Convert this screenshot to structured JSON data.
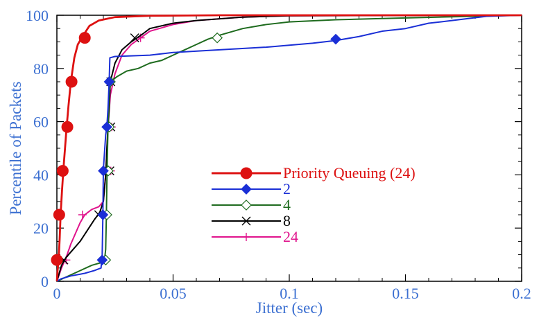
{
  "chart_data": {
    "type": "line",
    "title": "",
    "xlabel": "Jitter (sec)",
    "ylabel": "Percentile of Packets",
    "xlim": [
      0,
      0.2
    ],
    "ylim": [
      0,
      100
    ],
    "x_ticks": [
      "0",
      "0.05",
      "0.1",
      "0.15",
      "0.2"
    ],
    "y_ticks": [
      "0",
      "20",
      "40",
      "60",
      "80",
      "100"
    ],
    "grid": false,
    "legend_position": "center-right",
    "colors": {
      "tick_labels": "#3b6fd1",
      "axis_frame": "#000000"
    },
    "series": [
      {
        "name": "Priority Queuing (24)",
        "color": "#dd1111",
        "marker": "filled-circle",
        "points": [
          [
            0.0,
            0
          ],
          [
            0.0003,
            4
          ],
          [
            0.0008,
            9
          ],
          [
            0.0012,
            16
          ],
          [
            0.0016,
            25
          ],
          [
            0.0022,
            34
          ],
          [
            0.0028,
            42
          ],
          [
            0.0035,
            50
          ],
          [
            0.0042,
            58
          ],
          [
            0.005,
            66
          ],
          [
            0.006,
            75
          ],
          [
            0.0075,
            84
          ],
          [
            0.009,
            89
          ],
          [
            0.011,
            92
          ],
          [
            0.014,
            96
          ],
          [
            0.018,
            98
          ],
          [
            0.025,
            99.3
          ],
          [
            0.04,
            99.8
          ],
          [
            0.07,
            100
          ],
          [
            0.2,
            100
          ]
        ],
        "marker_points": [
          [
            0.0,
            8
          ],
          [
            0.001,
            25
          ],
          [
            0.0025,
            41.5
          ],
          [
            0.0045,
            58
          ],
          [
            0.0063,
            75
          ],
          [
            0.012,
            91.5
          ]
        ]
      },
      {
        "name": "2",
        "color": "#1a2fd6",
        "marker": "filled-diamond",
        "points": [
          [
            0.0,
            0
          ],
          [
            0.002,
            1
          ],
          [
            0.006,
            2
          ],
          [
            0.012,
            3
          ],
          [
            0.016,
            4
          ],
          [
            0.019,
            5
          ],
          [
            0.0195,
            10
          ],
          [
            0.0198,
            25
          ],
          [
            0.02,
            42
          ],
          [
            0.021,
            55
          ],
          [
            0.0215,
            58
          ],
          [
            0.022,
            65
          ],
          [
            0.0225,
            75
          ],
          [
            0.0228,
            84
          ],
          [
            0.025,
            84.5
          ],
          [
            0.04,
            85
          ],
          [
            0.05,
            86
          ],
          [
            0.07,
            87
          ],
          [
            0.09,
            88
          ],
          [
            0.11,
            89.5
          ],
          [
            0.12,
            90.5
          ],
          [
            0.13,
            92
          ],
          [
            0.14,
            94
          ],
          [
            0.15,
            95
          ],
          [
            0.16,
            97
          ],
          [
            0.17,
            98
          ],
          [
            0.185,
            99.6
          ],
          [
            0.2,
            100
          ]
        ],
        "marker_points": [
          [
            0.0195,
            8
          ],
          [
            0.0198,
            25
          ],
          [
            0.02,
            41.5
          ],
          [
            0.0215,
            58
          ],
          [
            0.0225,
            75
          ],
          [
            0.12,
            91
          ]
        ]
      },
      {
        "name": "4",
        "color": "#1e6b1e",
        "marker": "open-diamond",
        "points": [
          [
            0.0,
            0
          ],
          [
            0.005,
            2
          ],
          [
            0.01,
            4
          ],
          [
            0.015,
            6
          ],
          [
            0.019,
            7
          ],
          [
            0.0205,
            8
          ],
          [
            0.021,
            12
          ],
          [
            0.0213,
            25
          ],
          [
            0.0216,
            42
          ],
          [
            0.022,
            58
          ],
          [
            0.0225,
            70
          ],
          [
            0.023,
            75
          ],
          [
            0.026,
            77
          ],
          [
            0.03,
            79
          ],
          [
            0.035,
            80
          ],
          [
            0.04,
            82
          ],
          [
            0.045,
            83
          ],
          [
            0.05,
            85
          ],
          [
            0.055,
            87
          ],
          [
            0.06,
            89
          ],
          [
            0.065,
            91
          ],
          [
            0.07,
            92.5
          ],
          [
            0.08,
            95
          ],
          [
            0.09,
            96.5
          ],
          [
            0.1,
            97.5
          ],
          [
            0.12,
            98.3
          ],
          [
            0.15,
            99
          ],
          [
            0.18,
            99.6
          ],
          [
            0.2,
            100
          ]
        ],
        "marker_points": [
          [
            0.021,
            8
          ],
          [
            0.0215,
            25
          ],
          [
            0.0221,
            41.5
          ],
          [
            0.0226,
            58
          ],
          [
            0.023,
            75
          ],
          [
            0.069,
            91.5
          ]
        ]
      },
      {
        "name": "8",
        "color": "#000000",
        "marker": "x",
        "points": [
          [
            0.0,
            0
          ],
          [
            0.002,
            6
          ],
          [
            0.004,
            9
          ],
          [
            0.007,
            12
          ],
          [
            0.01,
            15
          ],
          [
            0.013,
            19
          ],
          [
            0.016,
            23
          ],
          [
            0.0185,
            26
          ],
          [
            0.02,
            30
          ],
          [
            0.021,
            40
          ],
          [
            0.0218,
            55
          ],
          [
            0.0225,
            65
          ],
          [
            0.023,
            75
          ],
          [
            0.025,
            82
          ],
          [
            0.028,
            87
          ],
          [
            0.032,
            90
          ],
          [
            0.037,
            93
          ],
          [
            0.04,
            95
          ],
          [
            0.05,
            97
          ],
          [
            0.06,
            98
          ],
          [
            0.08,
            99.3
          ],
          [
            0.1,
            99.8
          ],
          [
            0.2,
            100
          ]
        ],
        "marker_points": [
          [
            0.003,
            8
          ],
          [
            0.018,
            25
          ],
          [
            0.0228,
            41.5
          ],
          [
            0.0232,
            58
          ],
          [
            0.0232,
            75
          ],
          [
            0.0335,
            91.5
          ]
        ]
      },
      {
        "name": "24",
        "color": "#e0138c",
        "marker": "plus",
        "points": [
          [
            0.0,
            0
          ],
          [
            0.002,
            5
          ],
          [
            0.004,
            9
          ],
          [
            0.006,
            14
          ],
          [
            0.008,
            18
          ],
          [
            0.01,
            22
          ],
          [
            0.012,
            25
          ],
          [
            0.015,
            27
          ],
          [
            0.018,
            28
          ],
          [
            0.02,
            30
          ],
          [
            0.021,
            40
          ],
          [
            0.022,
            58
          ],
          [
            0.023,
            70
          ],
          [
            0.025,
            78
          ],
          [
            0.028,
            85
          ],
          [
            0.032,
            89
          ],
          [
            0.036,
            91.5
          ],
          [
            0.04,
            94
          ],
          [
            0.05,
            96.5
          ],
          [
            0.06,
            98
          ],
          [
            0.08,
            99.3
          ],
          [
            0.1,
            99.8
          ],
          [
            0.2,
            100
          ]
        ],
        "marker_points": [
          [
            0.004,
            8
          ],
          [
            0.011,
            25
          ],
          [
            0.0232,
            41.5
          ],
          [
            0.0236,
            58
          ],
          [
            0.0233,
            75
          ],
          [
            0.036,
            91.5
          ]
        ]
      }
    ]
  }
}
